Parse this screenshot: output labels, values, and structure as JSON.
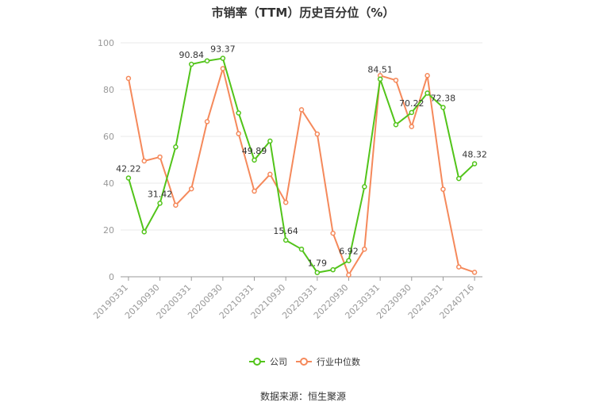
{
  "chart_data": {
    "type": "line",
    "title": "市销率（TTM）历史百分位（%）",
    "ylim": [
      0,
      100
    ],
    "yticks": [
      0,
      20,
      40,
      60,
      80,
      100
    ],
    "grid": true,
    "legend_position": "bottom",
    "x_labels": [
      "20190331",
      "20190930",
      "20200331",
      "20200930",
      "20210331",
      "20210930",
      "20220331",
      "20220930",
      "20230331",
      "20230930",
      "20240331",
      "20240716"
    ],
    "x_label_positions": [
      0,
      2,
      4,
      6,
      8,
      10,
      12,
      14,
      16,
      18,
      20,
      22
    ],
    "series": [
      {
        "name": "公司",
        "color": "#52c41a",
        "values": [
          42.22,
          19.2,
          31.42,
          55.5,
          90.84,
          92.3,
          93.37,
          70.0,
          49.89,
          58.0,
          15.64,
          11.8,
          1.79,
          3.0,
          6.92,
          38.5,
          84.51,
          65.0,
          70.22,
          78.5,
          72.38,
          42.0,
          48.32
        ],
        "labels": [
          "42.22",
          "",
          "31.42",
          "",
          "90.84",
          "",
          "93.37",
          "",
          "49.89",
          "",
          "15.64",
          "",
          "1.79",
          "",
          "6.92",
          "",
          "84.51",
          "",
          "70.22",
          "",
          "72.38",
          "",
          "48.32"
        ]
      },
      {
        "name": "行业中位数",
        "color": "#f5895b",
        "values": [
          84.8,
          49.5,
          51.2,
          30.6,
          37.6,
          66.3,
          89.0,
          61.2,
          36.6,
          43.8,
          31.8,
          71.4,
          61.0,
          18.6,
          0.8,
          11.8,
          86.0,
          84.0,
          64.2,
          86.0,
          37.4,
          4.2,
          1.9
        ]
      }
    ]
  },
  "source_text": "数据来源：恒生聚源"
}
